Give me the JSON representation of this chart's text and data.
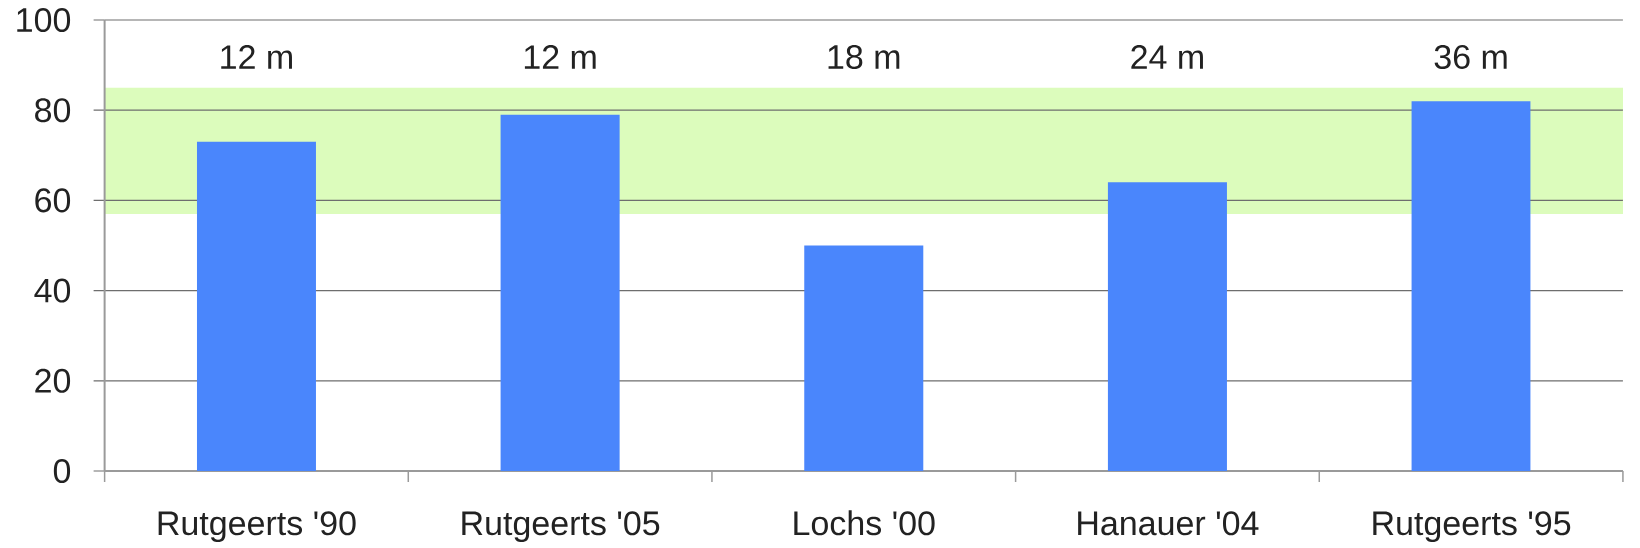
{
  "chart_data": {
    "type": "bar",
    "categories": [
      "Rutgeerts '90",
      "Rutgeerts '05",
      "Lochs '00",
      "Hanauer '04",
      "Rutgeerts '95"
    ],
    "values": [
      73,
      79,
      50,
      64,
      82
    ],
    "color": "#4a86fc",
    "ylim": [
      0,
      100
    ],
    "yticks": [
      0,
      20,
      40,
      60,
      80,
      100
    ],
    "grid": "y",
    "bands": [
      {
        "axis": "y",
        "from": 57,
        "to": 85,
        "color": "#dcfcbc"
      }
    ],
    "annotations": [
      "12 m",
      "12 m",
      "18 m",
      "24 m",
      "36 m"
    ]
  }
}
